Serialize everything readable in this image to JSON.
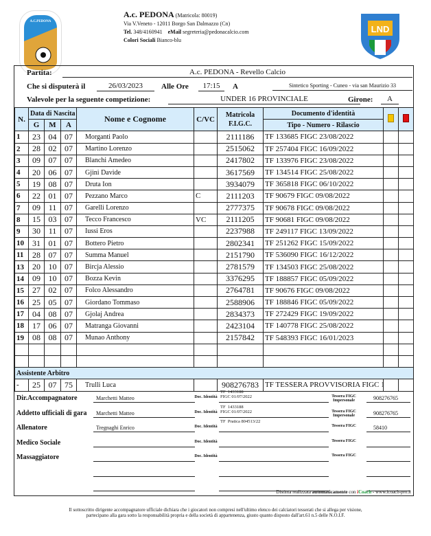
{
  "header": {
    "club": "A.c. PEDONA",
    "matricola": "(Matricola: 80019)",
    "address": "Via V.Veneto - 12011 Borgo San Dalmazzo (Cn)",
    "tel_label": "Tel.",
    "tel": "348/4160941",
    "email_label": "eMail",
    "email": "segreteria@pedonacalcio.com",
    "colors_label": "Colori Sociali",
    "colors": "Bianco-blu",
    "logo_left_text": "A.C. PEDONA BORGO S. DALMAZZO",
    "logo_right_text": "LND"
  },
  "match": {
    "partita_label": "Partita:",
    "partita": "A.c. PEDONA - Revello Calcio",
    "date_label": "Che si disputerà il",
    "date": "26/03/2023",
    "time_label": "Alle Ore",
    "time": "17:15",
    "at_label": "A",
    "venue": "Sintetico Sporting - Cuneo - via san Maurizio 33",
    "comp_label": "Valevole per la seguente competizione:",
    "competition": "UNDER 16 PROVINCIALE",
    "girone_label": "Girone:",
    "girone": "A"
  },
  "table": {
    "h_n": "N.",
    "h_birth": "Data di Nascita",
    "h_g": "G",
    "h_m": "M",
    "h_a": "A",
    "h_name": "Nome e Cognome",
    "h_cvc": "C/VC",
    "h_mat": "Matricola F.I.G.C.",
    "h_doc": "Documento d'identità",
    "h_doc2": "Tipo - Numero - Rilascio",
    "yellow": "#f5c400",
    "red": "#e01010",
    "header_bg": "#d6ecfb",
    "rows": [
      {
        "n": "1",
        "g": "23",
        "m": "04",
        "a": "07",
        "name": "Morganti Paolo",
        "cvc": "",
        "mat": "2111186",
        "doc": "TF  133685  FIGC 23/08/2022"
      },
      {
        "n": "2",
        "g": "28",
        "m": "02",
        "a": "07",
        "name": "Martino Lorenzo",
        "cvc": "",
        "mat": "2515062",
        "doc": "TF  257404  FIGC 16/09/2022"
      },
      {
        "n": "3",
        "g": "09",
        "m": "07",
        "a": "07",
        "name": "Blanchi Amedeo",
        "cvc": "",
        "mat": "2417802",
        "doc": "TF  133976  FIGC 23/08/2022"
      },
      {
        "n": "4",
        "g": "20",
        "m": "06",
        "a": "07",
        "name": "Gjini Davide",
        "cvc": "",
        "mat": "3617569",
        "doc": "TF  134514  FIGC 25/08/2022"
      },
      {
        "n": "5",
        "g": "19",
        "m": "08",
        "a": "07",
        "name": "Druta Ion",
        "cvc": "",
        "mat": "3934079",
        "doc": "TF  365818  FIGC 06/10/2022"
      },
      {
        "n": "6",
        "g": "22",
        "m": "01",
        "a": "07",
        "name": "Pezzano Marco",
        "cvc": "C",
        "mat": "2111203",
        "doc": "TF  90679  FIGC 09/08/2022"
      },
      {
        "n": "7",
        "g": "09",
        "m": "11",
        "a": "07",
        "name": "Garelli Lorenzo",
        "cvc": "",
        "mat": "2777375",
        "doc": "TF  90678  FIGC 09/08/2022"
      },
      {
        "n": "8",
        "g": "15",
        "m": "03",
        "a": "07",
        "name": "Tecco Francesco",
        "cvc": "VC",
        "mat": "2111205",
        "doc": "TF  90681  FIGC 09/08/2022"
      },
      {
        "n": "9",
        "g": "30",
        "m": "11",
        "a": "07",
        "name": "Iussi Eros",
        "cvc": "",
        "mat": "2237988",
        "doc": "TF  249117  FIGC 13/09/2022"
      },
      {
        "n": "10",
        "g": "31",
        "m": "01",
        "a": "07",
        "name": "Bottero Pietro",
        "cvc": "",
        "mat": "2802341",
        "doc": "TF  251262  FIGC 15/09/2022"
      },
      {
        "n": "11",
        "g": "28",
        "m": "07",
        "a": "07",
        "name": "Summa Manuel",
        "cvc": "",
        "mat": "2151790",
        "doc": "TF  536090  FIGC 16/12/2022"
      },
      {
        "n": "13",
        "g": "20",
        "m": "10",
        "a": "07",
        "name": "Bircja Alessio",
        "cvc": "",
        "mat": "2781579",
        "doc": "TF  134503  FIGC 25/08/2022"
      },
      {
        "n": "14",
        "g": "09",
        "m": "10",
        "a": "07",
        "name": "Bozza Kevin",
        "cvc": "",
        "mat": "3376295",
        "doc": "TF  188857  FIGC 05/09/2022"
      },
      {
        "n": "15",
        "g": "27",
        "m": "02",
        "a": "07",
        "name": "Folco Alessandro",
        "cvc": "",
        "mat": "2764781",
        "doc": "TF  90676  FIGC 09/08/2022"
      },
      {
        "n": "16",
        "g": "25",
        "m": "05",
        "a": "07",
        "name": "Giordano Tommaso",
        "cvc": "",
        "mat": "2588906",
        "doc": "TF  188846  FIGC 05/09/2022"
      },
      {
        "n": "17",
        "g": "04",
        "m": "08",
        "a": "07",
        "name": "Gjolaj Andrea",
        "cvc": "",
        "mat": "2834373",
        "doc": "TF  272429  FIGC 19/09/2022"
      },
      {
        "n": "18",
        "g": "17",
        "m": "06",
        "a": "07",
        "name": "Matranga Giovanni",
        "cvc": "",
        "mat": "2423104",
        "doc": "TF  140778  FIGC 25/08/2022"
      },
      {
        "n": "19",
        "g": "08",
        "m": "08",
        "a": "07",
        "name": "Munao Anthony",
        "cvc": "",
        "mat": "2157842",
        "doc": "TF  548393  FIGC 16/01/2023"
      }
    ],
    "assistant_label": "Assistente Arbitro",
    "assistant": {
      "n": "-",
      "g": "25",
      "m": "07",
      "a": "75",
      "name": "Trulli Luca",
      "cvc": "",
      "mat": "908276783",
      "doc": "TF  TESSERA PROVVISORIA  FIGC 19/09/2022"
    }
  },
  "staff": {
    "doc_label": "Doc. Identità",
    "tessera_imp_label": "Tessera FIGC Impersonale",
    "tessera_label": "Tessera FIGC",
    "items": [
      {
        "role": "Dir.Accompagnatore",
        "name": "Marchetti Matteo",
        "doc": "TF  1433188\nFIGC 01/07/2022",
        "tessera": "908276765"
      },
      {
        "role": "Addetto ufficiali di gara",
        "name": "Marchetti Matteo",
        "doc": "TF  1433188\nFIGC 01/07/2022",
        "tessera": "908276765"
      },
      {
        "role": "Allenatore",
        "name": "Tregnaghi Enrico",
        "doc": "TF  Pratica 804513/22",
        "tessera": "58410"
      },
      {
        "role": "Medico Sociale",
        "name": "",
        "doc": "",
        "tessera": ""
      },
      {
        "role": "Massaggiatore",
        "name": "",
        "doc": "",
        "tessera": ""
      }
    ]
  },
  "footer": {
    "made_prefix": "Distinta realizzata",
    "made_bold": "automaticamente",
    "made_with": "con",
    "brand_i": "i",
    "brand_rest": "Coach",
    "site": "- www.icoach-pro.it",
    "note1": "Il sottoscritto dirigente accompagnatore ufficiale dichiara che i giocatori non compresi nell'ultimo elenco dei calciatori tesserati che si allega per visione,",
    "note2": "partecipano alla gara sotto la responsabilità propria e della società di appartenenza, giusto quanto disposto dall'art.61 n.5 delle N.O.I.F."
  }
}
